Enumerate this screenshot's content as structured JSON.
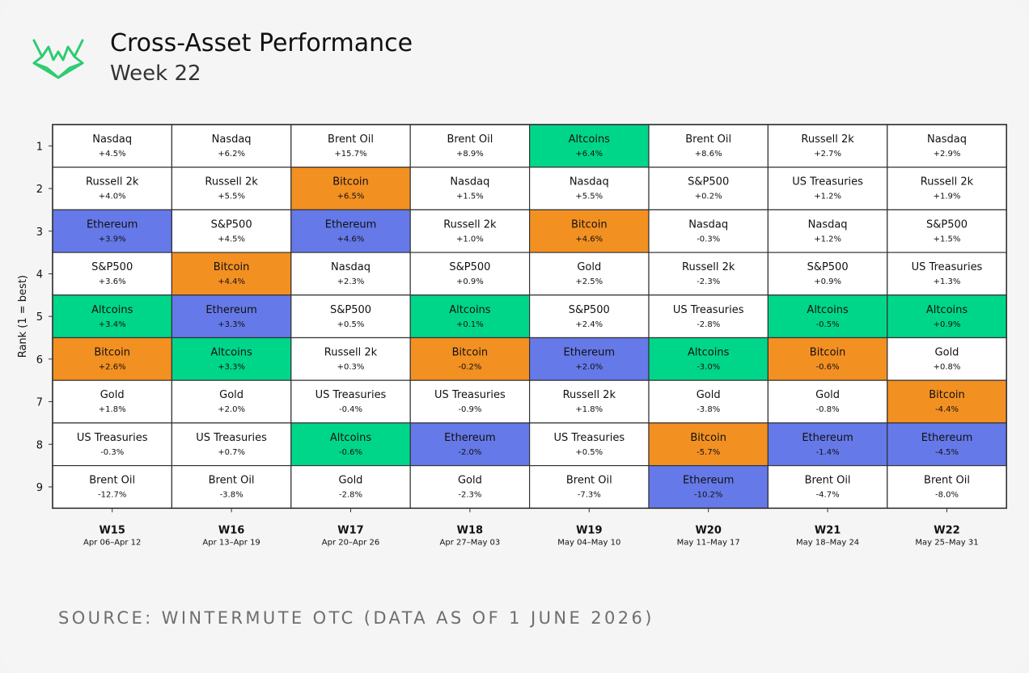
{
  "header": {
    "title": "Cross-Asset Performance",
    "subtitle": "Week 22"
  },
  "logo": {
    "icon": "wintermute-logo-icon",
    "color": "#2ecc71"
  },
  "source": "SOURCE: WINTERMUTE OTC (DATA AS OF 1 JUNE 2026)",
  "colors": {
    "Bitcoin": "#f39022",
    "Ethereum": "#6579e8",
    "Altcoins": "#00d68a",
    "default": "#ffffff",
    "grid": "#333333"
  },
  "chart_data": {
    "type": "table",
    "ylabel": "Rank (1 = best)",
    "rank_labels": [
      "1",
      "2",
      "3",
      "4",
      "5",
      "6",
      "7",
      "8",
      "9"
    ],
    "weeks": [
      {
        "label": "W15",
        "dates": "Apr 06–Apr 12",
        "cells": [
          {
            "asset": "Nasdaq",
            "value": "+4.5%"
          },
          {
            "asset": "Russell 2k",
            "value": "+4.0%"
          },
          {
            "asset": "Ethereum",
            "value": "+3.9%"
          },
          {
            "asset": "S&P500",
            "value": "+3.6%"
          },
          {
            "asset": "Altcoins",
            "value": "+3.4%"
          },
          {
            "asset": "Bitcoin",
            "value": "+2.6%"
          },
          {
            "asset": "Gold",
            "value": "+1.8%"
          },
          {
            "asset": "US Treasuries",
            "value": "-0.3%"
          },
          {
            "asset": "Brent Oil",
            "value": "-12.7%"
          }
        ]
      },
      {
        "label": "W16",
        "dates": "Apr 13–Apr 19",
        "cells": [
          {
            "asset": "Nasdaq",
            "value": "+6.2%"
          },
          {
            "asset": "Russell 2k",
            "value": "+5.5%"
          },
          {
            "asset": "S&P500",
            "value": "+4.5%"
          },
          {
            "asset": "Bitcoin",
            "value": "+4.4%"
          },
          {
            "asset": "Ethereum",
            "value": "+3.3%"
          },
          {
            "asset": "Altcoins",
            "value": "+3.3%"
          },
          {
            "asset": "Gold",
            "value": "+2.0%"
          },
          {
            "asset": "US Treasuries",
            "value": "+0.7%"
          },
          {
            "asset": "Brent Oil",
            "value": "-3.8%"
          }
        ]
      },
      {
        "label": "W17",
        "dates": "Apr 20–Apr 26",
        "cells": [
          {
            "asset": "Brent Oil",
            "value": "+15.7%"
          },
          {
            "asset": "Bitcoin",
            "value": "+6.5%"
          },
          {
            "asset": "Ethereum",
            "value": "+4.6%"
          },
          {
            "asset": "Nasdaq",
            "value": "+2.3%"
          },
          {
            "asset": "S&P500",
            "value": "+0.5%"
          },
          {
            "asset": "Russell 2k",
            "value": "+0.3%"
          },
          {
            "asset": "US Treasuries",
            "value": "-0.4%"
          },
          {
            "asset": "Altcoins",
            "value": "-0.6%"
          },
          {
            "asset": "Gold",
            "value": "-2.8%"
          }
        ]
      },
      {
        "label": "W18",
        "dates": "Apr 27–May 03",
        "cells": [
          {
            "asset": "Brent Oil",
            "value": "+8.9%"
          },
          {
            "asset": "Nasdaq",
            "value": "+1.5%"
          },
          {
            "asset": "Russell 2k",
            "value": "+1.0%"
          },
          {
            "asset": "S&P500",
            "value": "+0.9%"
          },
          {
            "asset": "Altcoins",
            "value": "+0.1%"
          },
          {
            "asset": "Bitcoin",
            "value": "-0.2%"
          },
          {
            "asset": "US Treasuries",
            "value": "-0.9%"
          },
          {
            "asset": "Ethereum",
            "value": "-2.0%"
          },
          {
            "asset": "Gold",
            "value": "-2.3%"
          }
        ]
      },
      {
        "label": "W19",
        "dates": "May 04–May 10",
        "cells": [
          {
            "asset": "Altcoins",
            "value": "+6.4%"
          },
          {
            "asset": "Nasdaq",
            "value": "+5.5%"
          },
          {
            "asset": "Bitcoin",
            "value": "+4.6%"
          },
          {
            "asset": "Gold",
            "value": "+2.5%"
          },
          {
            "asset": "S&P500",
            "value": "+2.4%"
          },
          {
            "asset": "Ethereum",
            "value": "+2.0%"
          },
          {
            "asset": "Russell 2k",
            "value": "+1.8%"
          },
          {
            "asset": "US Treasuries",
            "value": "+0.5%"
          },
          {
            "asset": "Brent Oil",
            "value": "-7.3%"
          }
        ]
      },
      {
        "label": "W20",
        "dates": "May 11–May 17",
        "cells": [
          {
            "asset": "Brent Oil",
            "value": "+8.6%"
          },
          {
            "asset": "S&P500",
            "value": "+0.2%"
          },
          {
            "asset": "Nasdaq",
            "value": "-0.3%"
          },
          {
            "asset": "Russell 2k",
            "value": "-2.3%"
          },
          {
            "asset": "US Treasuries",
            "value": "-2.8%"
          },
          {
            "asset": "Altcoins",
            "value": "-3.0%"
          },
          {
            "asset": "Gold",
            "value": "-3.8%"
          },
          {
            "asset": "Bitcoin",
            "value": "-5.7%"
          },
          {
            "asset": "Ethereum",
            "value": "-10.2%"
          }
        ]
      },
      {
        "label": "W21",
        "dates": "May 18–May 24",
        "cells": [
          {
            "asset": "Russell 2k",
            "value": "+2.7%"
          },
          {
            "asset": "US Treasuries",
            "value": "+1.2%"
          },
          {
            "asset": "Nasdaq",
            "value": "+1.2%"
          },
          {
            "asset": "S&P500",
            "value": "+0.9%"
          },
          {
            "asset": "Altcoins",
            "value": "-0.5%"
          },
          {
            "asset": "Bitcoin",
            "value": "-0.6%"
          },
          {
            "asset": "Gold",
            "value": "-0.8%"
          },
          {
            "asset": "Ethereum",
            "value": "-1.4%"
          },
          {
            "asset": "Brent Oil",
            "value": "-4.7%"
          }
        ]
      },
      {
        "label": "W22",
        "dates": "May 25–May 31",
        "cells": [
          {
            "asset": "Nasdaq",
            "value": "+2.9%"
          },
          {
            "asset": "Russell 2k",
            "value": "+1.9%"
          },
          {
            "asset": "S&P500",
            "value": "+1.5%"
          },
          {
            "asset": "US Treasuries",
            "value": "+1.3%"
          },
          {
            "asset": "Altcoins",
            "value": "+0.9%"
          },
          {
            "asset": "Gold",
            "value": "+0.8%"
          },
          {
            "asset": "Bitcoin",
            "value": "-4.4%"
          },
          {
            "asset": "Ethereum",
            "value": "-4.5%"
          },
          {
            "asset": "Brent Oil",
            "value": "-8.0%"
          }
        ]
      }
    ]
  }
}
